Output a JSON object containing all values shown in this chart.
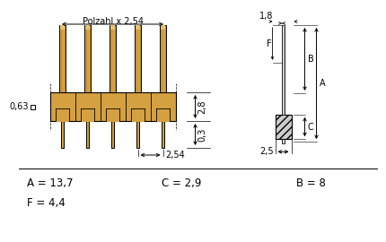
{
  "bg_color": "#ffffff",
  "line_color": "#000000",
  "pin_fill": "#d4a040",
  "body_fill": "#d4a040",
  "hatch_fill": "#cccccc",
  "dimensions_text": {
    "polzahl": "Polzahl x 2,54",
    "dim_063": "0,63",
    "dim_254": "2,54",
    "dim_28": "2,8",
    "dim_03": "0,3",
    "dim_18": "1,8",
    "dim_25": "2,5",
    "A_val": "A = 13,7",
    "B_val": "B = 8",
    "C_val": "C = 2,9",
    "F_val": "F = 4,4",
    "A_lbl": "A",
    "B_lbl": "B",
    "C_lbl": "C",
    "F_lbl": "F"
  }
}
